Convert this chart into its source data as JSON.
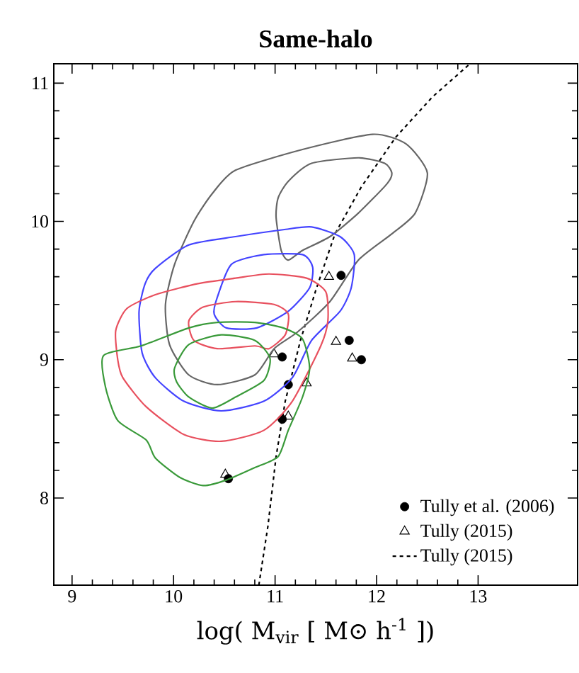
{
  "chart_data": {
    "type": "line",
    "title": "Same-halo",
    "xlabel": "log( M$_{vir}$ [ M⊙ h$^{-1}$ ])",
    "xlim": [
      8.82,
      13.98
    ],
    "ylim": [
      7.37,
      11.14
    ],
    "xticks": [
      9,
      10,
      11,
      12,
      13
    ],
    "yticks": [
      8,
      9,
      10,
      11
    ],
    "grid": false,
    "legend": "bottom right",
    "series": [
      {
        "name": "Tully (2015)",
        "color": "#000000",
        "line_style": "dashed",
        "x": [
          10.84,
          10.93,
          11.01,
          11.1,
          11.25,
          11.4,
          11.59,
          11.85,
          12.19,
          12.55,
          12.92
        ],
        "values": [
          7.37,
          7.8,
          8.3,
          8.7,
          9.14,
          9.5,
          9.91,
          10.25,
          10.61,
          10.9,
          11.14
        ]
      },
      {
        "type": "scatter",
        "name": "Tully et al. (2006)",
        "color": "#000000",
        "marker": "circle",
        "x": [
          11.65,
          11.07,
          11.73,
          11.85,
          11.13,
          11.07,
          10.54
        ],
        "values": [
          9.61,
          9.02,
          9.14,
          9.0,
          8.82,
          8.57,
          8.14
        ]
      },
      {
        "type": "scatter",
        "name": "Tully (2015)",
        "color": "#000000",
        "marker": "triangle",
        "x": [
          11.53,
          10.99,
          11.6,
          11.76,
          11.31,
          11.13,
          10.51
        ],
        "values": [
          9.6,
          9.04,
          9.13,
          9.01,
          8.83,
          8.59,
          8.17
        ]
      }
    ]
  }
}
